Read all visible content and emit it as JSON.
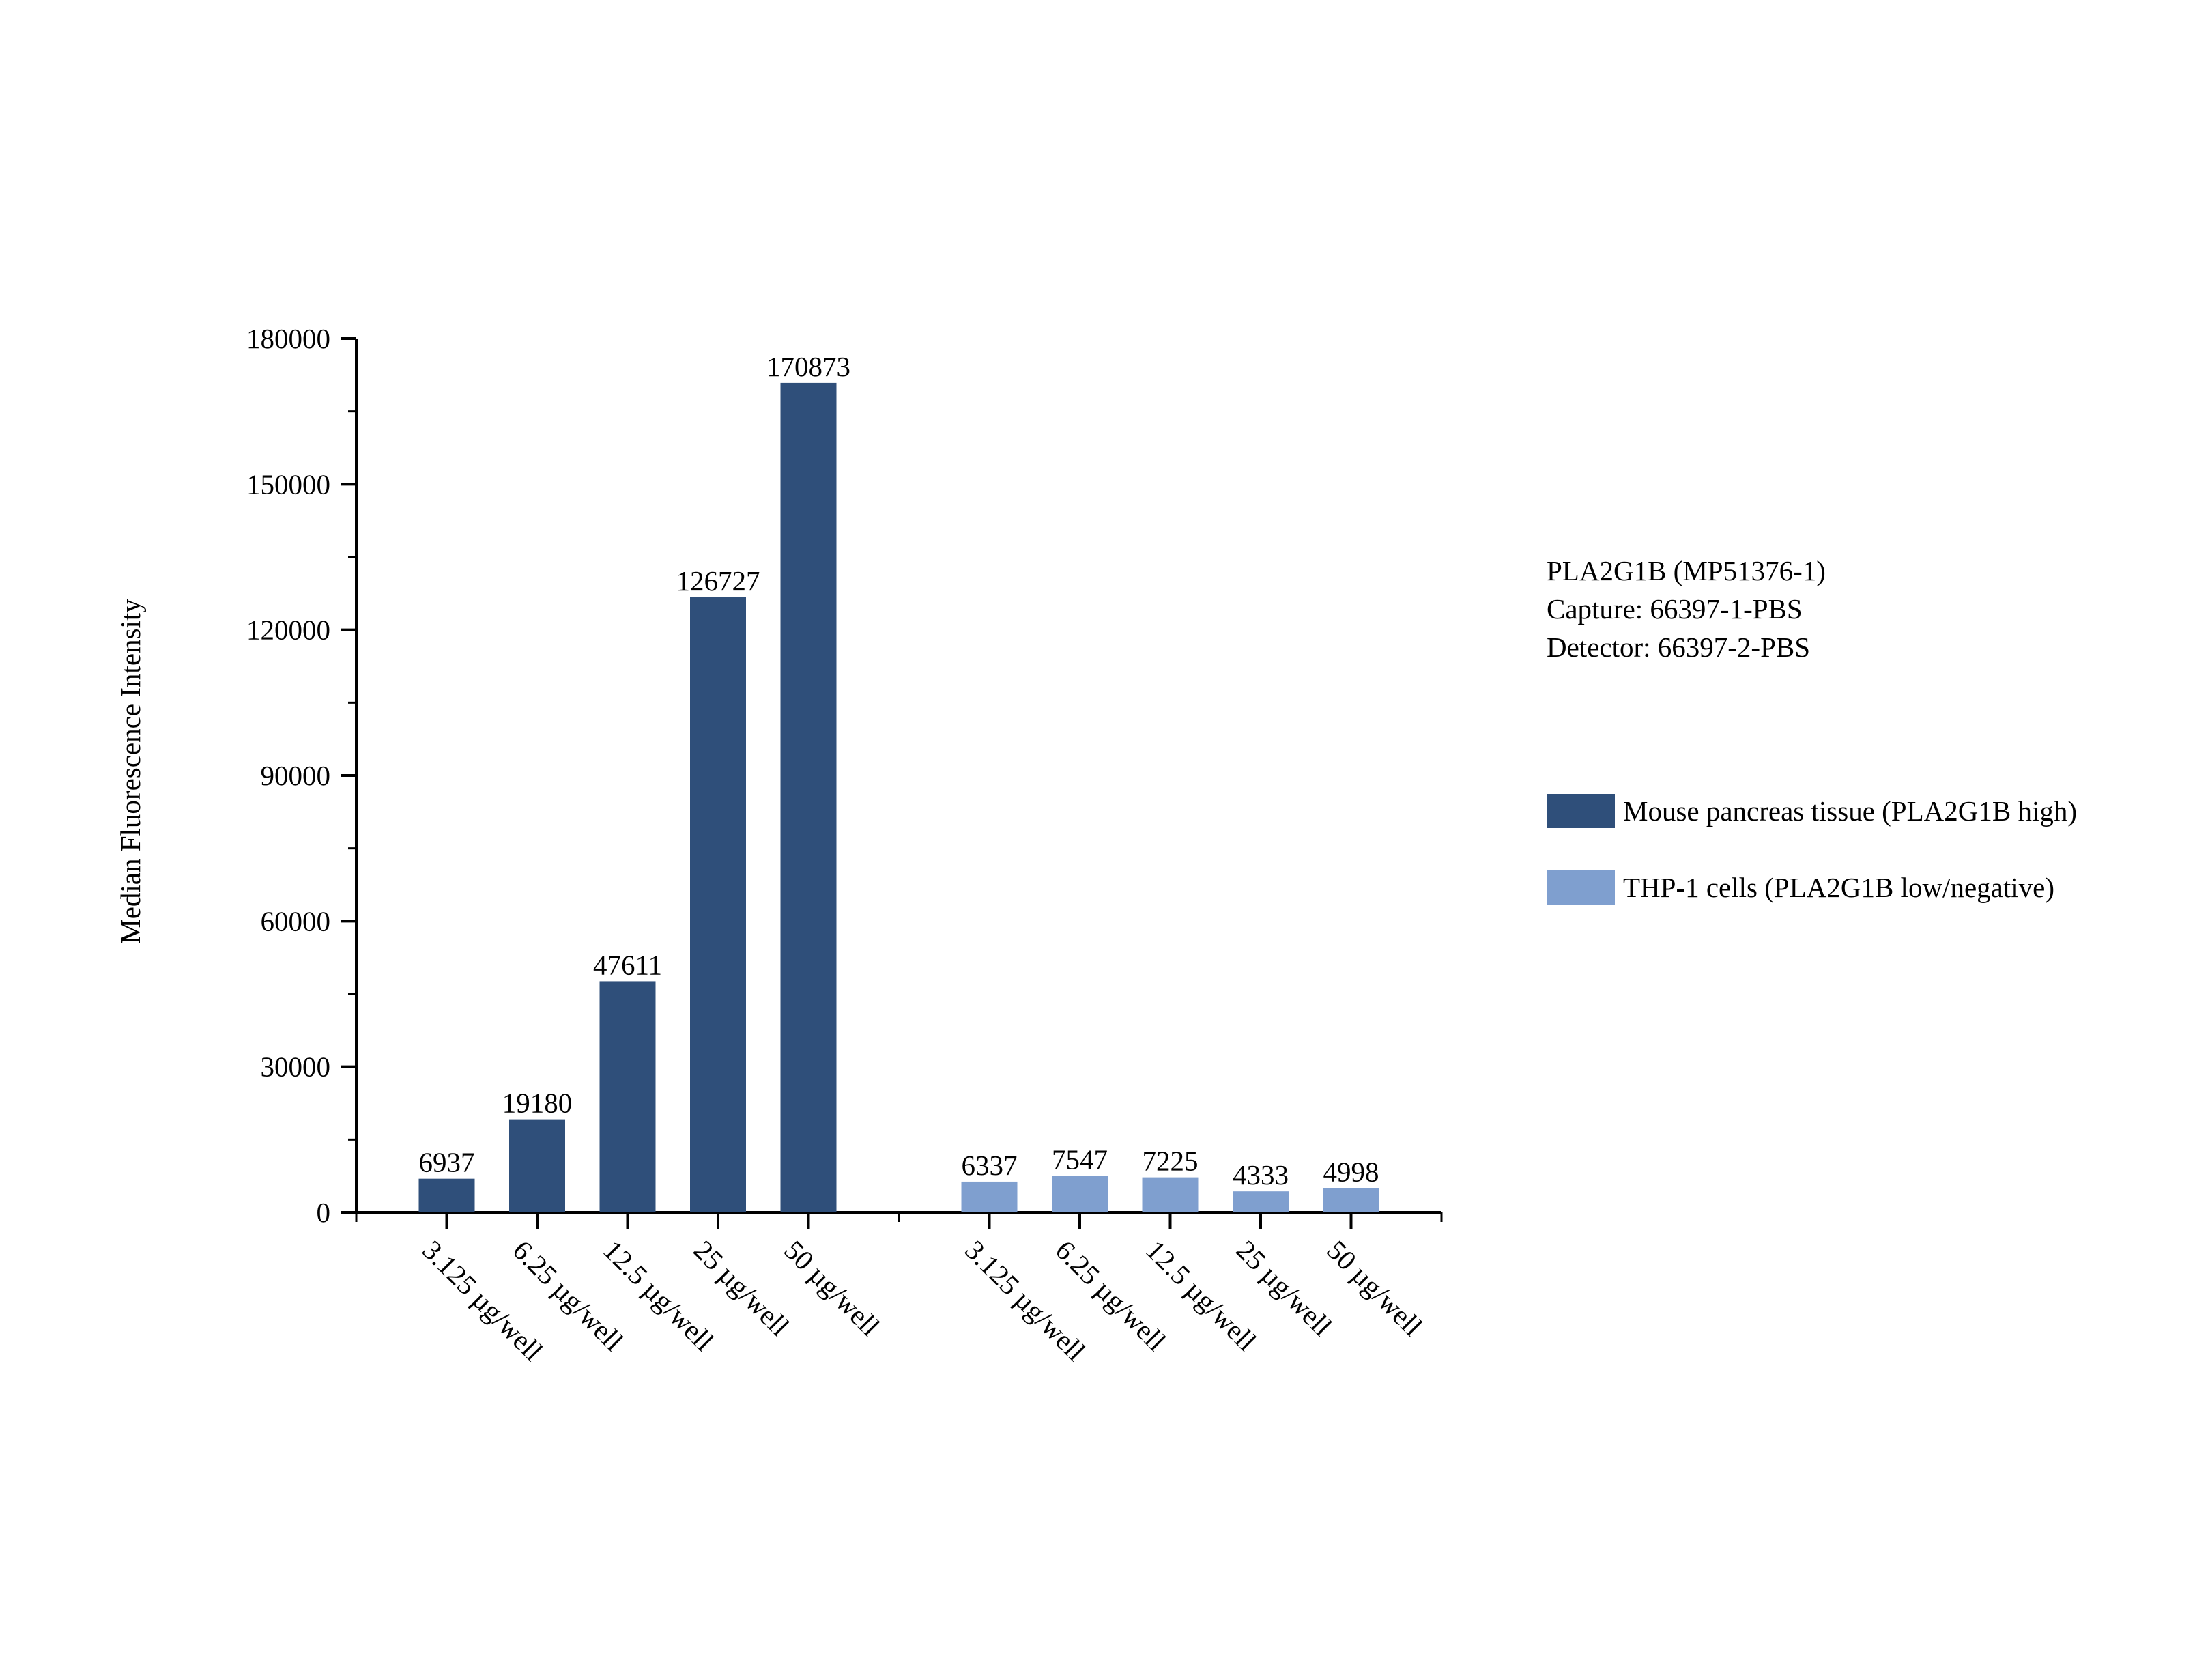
{
  "chart_data": {
    "type": "bar",
    "ylabel": "Median Fluorescence Intensity",
    "xlabel": "",
    "ylim": [
      0,
      180000
    ],
    "yticks": [
      0,
      30000,
      60000,
      90000,
      120000,
      150000,
      180000
    ],
    "categories": [
      "3.125 µg/well",
      "6.25 µg/well",
      "12.5 µg/well",
      "25 µg/well",
      "50 µg/well"
    ],
    "series": [
      {
        "name": "Mouse pancreas tissue (PLA2G1B high)",
        "color": "#2f4f7a",
        "values": [
          6937,
          19180,
          47611,
          126727,
          170873
        ]
      },
      {
        "name": "THP-1 cells (PLA2G1B low/negative)",
        "color": "#7f9fcf",
        "values": [
          6337,
          7547,
          7225,
          4333,
          4998
        ]
      }
    ],
    "legend_position": "right",
    "grid": false
  },
  "info": {
    "line1": "PLA2G1B (MP51376-1)",
    "line2": "Capture: 66397-1-PBS",
    "line3": "Detector: 66397-2-PBS"
  }
}
